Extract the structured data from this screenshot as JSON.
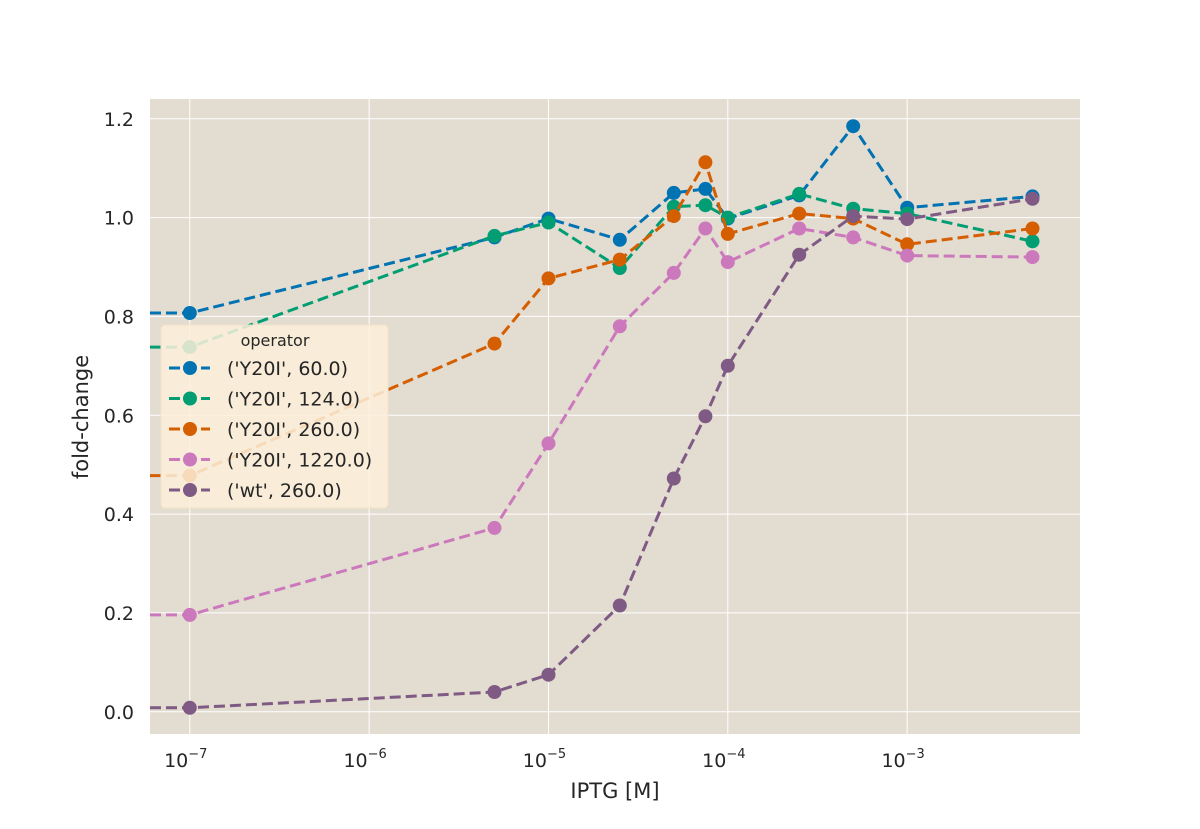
{
  "chart_data": {
    "type": "line",
    "title": "",
    "xlabel": "IPTG [M]",
    "ylabel": "fold-change",
    "xscale": "log",
    "xlim": [
      6e-08,
      0.0092
    ],
    "ylim": [
      -0.045,
      1.24
    ],
    "x_ticks": [
      1e-07,
      1e-06,
      1e-05,
      0.0001,
      0.001
    ],
    "x_tick_labels": [
      {
        "base": "10",
        "exp": "−7"
      },
      {
        "base": "10",
        "exp": "−6"
      },
      {
        "base": "10",
        "exp": "−5"
      },
      {
        "base": "10",
        "exp": "−4"
      },
      {
        "base": "10",
        "exp": "−3"
      }
    ],
    "y_ticks": [
      0.0,
      0.2,
      0.4,
      0.6,
      0.8,
      1.0,
      1.2
    ],
    "y_tick_labels": [
      "0.0",
      "0.2",
      "0.4",
      "0.6",
      "0.8",
      "1.0",
      "1.2"
    ],
    "grid": true,
    "plot_background": "#e3dcd0",
    "grid_color": "#ffffff",
    "legend": {
      "title": "operator",
      "placement": "center-left"
    },
    "series": [
      {
        "name": "('Y20I', 60.0)",
        "color": "#0173b2",
        "x": [
          1e-07,
          5e-06,
          1e-05,
          2.5e-05,
          5e-05,
          7.5e-05,
          0.0001,
          0.00025,
          0.0005,
          0.001,
          0.005
        ],
        "y": [
          0.807,
          0.96,
          0.998,
          0.955,
          1.05,
          1.058,
          0.998,
          1.045,
          1.185,
          1.02,
          1.043
        ]
      },
      {
        "name": "('Y20I', 124.0)",
        "color": "#029e73",
        "x": [
          1e-07,
          5e-06,
          1e-05,
          2.5e-05,
          5e-05,
          7.5e-05,
          0.0001,
          0.00025,
          0.0005,
          0.001,
          0.005
        ],
        "y": [
          0.738,
          0.963,
          0.99,
          0.898,
          1.022,
          1.025,
          1.0,
          1.048,
          1.018,
          1.008,
          0.952
        ]
      },
      {
        "name": "('Y20I', 260.0)",
        "color": "#d55e00",
        "x": [
          1e-07,
          5e-06,
          1e-05,
          2.5e-05,
          5e-05,
          7.5e-05,
          0.0001,
          0.00025,
          0.0005,
          0.001,
          0.005
        ],
        "y": [
          0.478,
          0.745,
          0.877,
          0.915,
          1.003,
          1.112,
          0.967,
          1.008,
          0.998,
          0.946,
          0.978
        ]
      },
      {
        "name": "('Y20I', 1220.0)",
        "color": "#cc78bc",
        "x": [
          1e-07,
          5e-06,
          1e-05,
          2.5e-05,
          5e-05,
          7.5e-05,
          0.0001,
          0.00025,
          0.0005,
          0.001,
          0.005
        ],
        "y": [
          0.196,
          0.372,
          0.543,
          0.78,
          0.888,
          0.978,
          0.91,
          0.978,
          0.96,
          0.923,
          0.92
        ]
      },
      {
        "name": "('wt', 260.0)",
        "color": "#7f5a84",
        "x": [
          1e-07,
          5e-06,
          1e-05,
          2.5e-05,
          5e-05,
          7.5e-05,
          0.0001,
          0.00025,
          0.0005,
          0.001,
          0.005
        ],
        "y": [
          0.008,
          0.04,
          0.075,
          0.215,
          0.472,
          0.598,
          0.7,
          0.925,
          1.003,
          0.997,
          1.038
        ]
      }
    ]
  }
}
